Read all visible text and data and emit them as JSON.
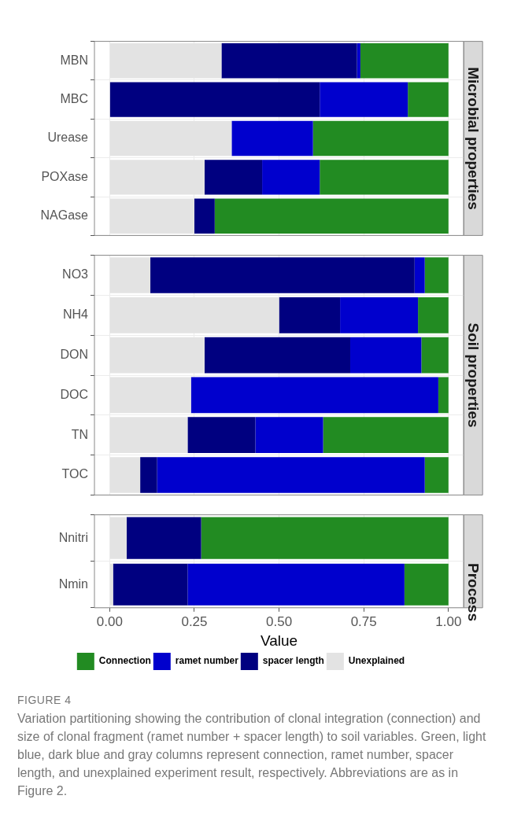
{
  "chart_data": [
    {
      "type": "bar",
      "orientation": "horizontal",
      "stacked": true,
      "title": "Microbial properties",
      "categories": [
        "MBN",
        "MBC",
        "Urease",
        "POXase",
        "NAGase"
      ],
      "xlim": [
        -0.045,
        1.045
      ],
      "xticks": [
        {
          "value": 0,
          "label": null
        },
        {
          "value": 0.25,
          "label": null
        },
        {
          "value": 0.5,
          "label": null
        },
        {
          "value": 0.75,
          "label": null
        },
        {
          "value": 1,
          "label": null
        }
      ],
      "grid": true,
      "legend": false,
      "tick_labels": "y",
      "series": [
        {
          "color": "#e3e3e3",
          "values": [
            0.33,
            0,
            0.36,
            0.28,
            0.25
          ]
        },
        {
          "color": "#000080",
          "values": [
            0.4,
            0.62,
            0,
            0.17,
            0.06
          ]
        },
        {
          "color": "#0000cd",
          "values": [
            0.01,
            0.26,
            0.24,
            0.17,
            0
          ]
        },
        {
          "color": "#228b22",
          "values": [
            0.26,
            0.12,
            0.4,
            0.38,
            0.69
          ]
        }
      ]
    },
    {
      "type": "bar",
      "orientation": "horizontal",
      "stacked": true,
      "title": "Soil properties",
      "categories": [
        "NO3",
        "NH4",
        "DON",
        "DOC",
        "TN",
        "TOC"
      ],
      "xlim": [
        -0.045,
        1.045
      ],
      "xticks": [
        {
          "value": 0,
          "label": null
        },
        {
          "value": 0.25,
          "label": null
        },
        {
          "value": 0.5,
          "label": null
        },
        {
          "value": 0.75,
          "label": null
        },
        {
          "value": 1,
          "label": null
        }
      ],
      "grid": true,
      "legend": false,
      "tick_labels": "y",
      "series": [
        {
          "color": "#e3e3e3",
          "values": [
            0.12,
            0.5,
            0.28,
            0.24,
            0.23,
            0.09
          ]
        },
        {
          "color": "#000080",
          "values": [
            0.78,
            0.18,
            0.43,
            0,
            0.2,
            0.05
          ]
        },
        {
          "color": "#0000cd",
          "values": [
            0.03,
            0.23,
            0.21,
            0.73,
            0.2,
            0.79
          ]
        },
        {
          "color": "#228b22",
          "values": [
            0.07,
            0.09,
            0.08,
            0.03,
            0.37,
            0.07
          ]
        }
      ]
    },
    {
      "type": "bar",
      "orientation": "horizontal",
      "stacked": true,
      "title": "Process",
      "categories": [
        "Nnitri",
        "Nmin"
      ],
      "xlabel": "Value",
      "xlim": [
        -0.045,
        1.045
      ],
      "xticks": [
        {
          "value": 0,
          "label": "0.00"
        },
        {
          "value": 0.25,
          "label": "0.25"
        },
        {
          "value": 0.5,
          "label": "0.50"
        },
        {
          "value": 0.75,
          "label": "0.75"
        },
        {
          "value": 1,
          "label": "1.00"
        }
      ],
      "grid": true,
      "legend": "bottom",
      "annotations": [
        "FIGURE 4",
        "Variation partitioning showing the contribution of clonal integration (connection) and size of clonal fragment (ramet number + spacer length) to soil variables. Green, light blue, dark blue and gray columns represent connection, ramet number, spacer length, and unexplained experiment result, respectively. Abbreviations are as in Figure 2."
      ],
      "series": [
        {
          "name": "Unexplained",
          "color": "#e3e3e3",
          "values": [
            0.05,
            0.01
          ]
        },
        {
          "name": "spacer length",
          "color": "#000080",
          "values": [
            0.22,
            0.22
          ]
        },
        {
          "name": "ramet number",
          "color": "#0000cd",
          "values": [
            0,
            0.64
          ]
        },
        {
          "name": "Connection",
          "color": "#228b22",
          "values": [
            0.73,
            0.13
          ]
        }
      ]
    }
  ]
}
